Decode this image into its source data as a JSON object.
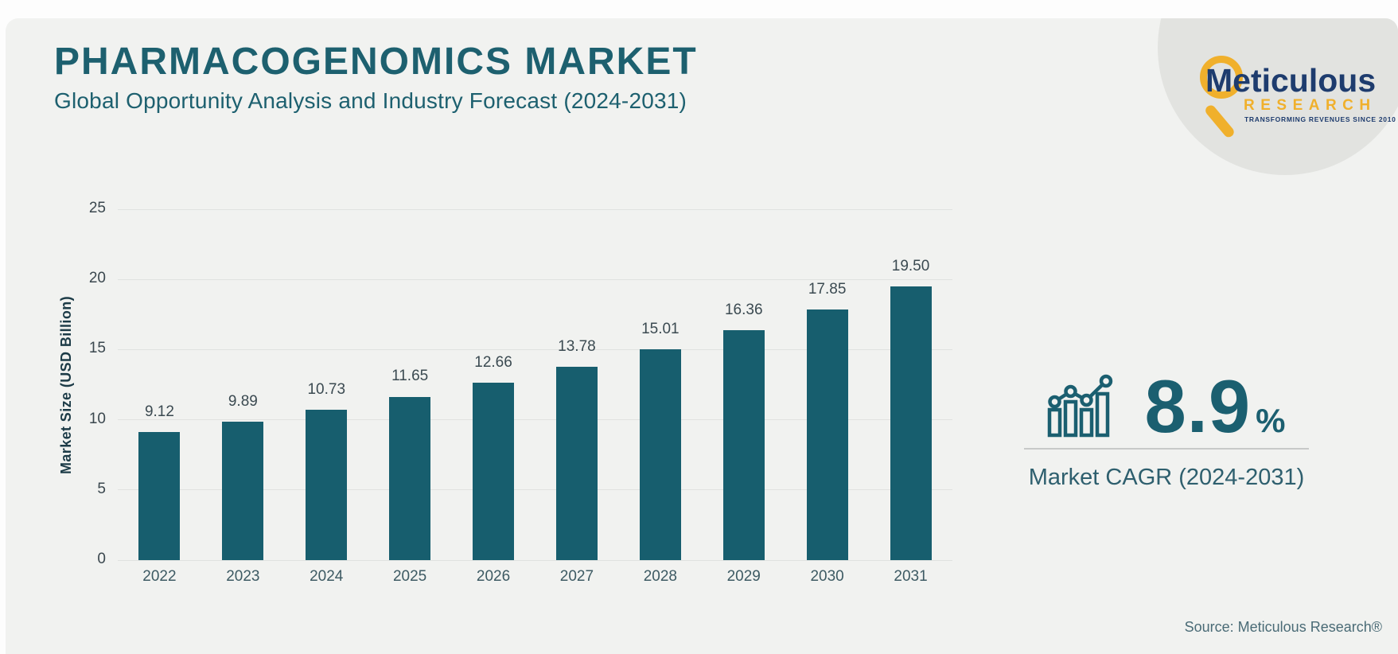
{
  "header": {
    "title": "PHARMACOGENOMICS MARKET",
    "subtitle": "Global Opportunity Analysis and Industry Forecast (2024-2031)"
  },
  "logo": {
    "name": "Meticulous",
    "sub": "RESEARCH",
    "tagline": "TRANSFORMING REVENUES SINCE 2010",
    "navy": "#1e3c6e",
    "gold": "#f0b02c"
  },
  "chart_data": {
    "type": "bar",
    "categories": [
      "2022",
      "2023",
      "2024",
      "2025",
      "2026",
      "2027",
      "2028",
      "2029",
      "2030",
      "2031"
    ],
    "values": [
      9.12,
      9.89,
      10.73,
      11.65,
      12.66,
      13.78,
      15.01,
      16.36,
      17.85,
      19.5
    ],
    "value_labels": [
      "9.12",
      "9.89",
      "10.73",
      "11.65",
      "12.66",
      "13.78",
      "15.01",
      "16.36",
      "17.85",
      "19.50"
    ],
    "title": "PHARMACOGENOMICS MARKET",
    "xlabel": "",
    "ylabel": "Market Size (USD Billion)",
    "ylim": [
      0,
      25
    ],
    "yticks": [
      0,
      5,
      10,
      15,
      20,
      25
    ],
    "grid": true,
    "legend": false,
    "bar_color": "#175e6e"
  },
  "cagr": {
    "value": "8.9",
    "unit": "%",
    "label": "Market CAGR (2024-2031)"
  },
  "source": "Source: Meticulous Research®"
}
